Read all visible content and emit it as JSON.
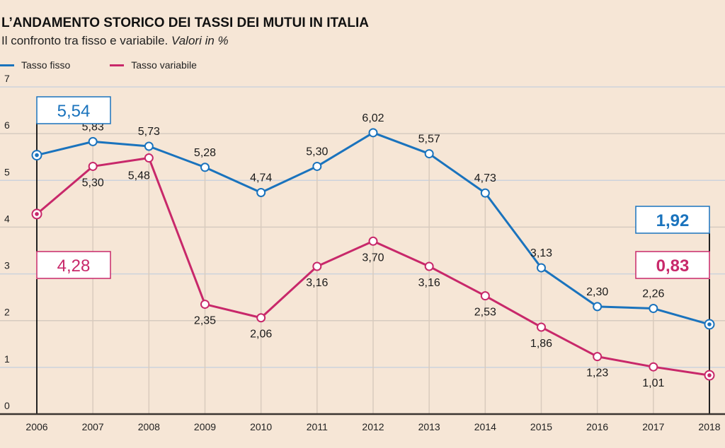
{
  "header": {
    "title": "L’ANDAMENTO STORICO DEI TASSI DEI MUTUI IN ITALIA",
    "subtitle_plain": "Il confronto tra fisso e variabile.",
    "subtitle_italic": "Valori in %"
  },
  "colors": {
    "fisso": "#1a73bd",
    "variabile": "#c8286a",
    "background": "#f6e6d6",
    "text": "#1a1a1a"
  },
  "chart_data": {
    "type": "line",
    "title": "L’ANDAMENTO STORICO DEI TASSI DEI MUTUI IN ITALIA",
    "subtitle": "Il confronto tra fisso e variabile. Valori in %",
    "xlabel": "",
    "ylabel": "",
    "x": [
      "2006",
      "2007",
      "2008",
      "2009",
      "2010",
      "2011",
      "2012",
      "2013",
      "2014",
      "2015",
      "2016",
      "2017",
      "2018"
    ],
    "ylim": [
      0,
      7
    ],
    "yticks": [
      "0",
      "1",
      "2",
      "3",
      "4",
      "5",
      "6",
      "7"
    ],
    "grid": true,
    "legend": "top-left",
    "series": [
      {
        "name": "Tasso fisso",
        "color": "#1a73bd",
        "values": [
          5.54,
          5.83,
          5.73,
          5.28,
          4.74,
          5.3,
          6.02,
          5.57,
          4.73,
          3.13,
          2.3,
          2.26,
          1.92
        ],
        "labels": [
          "5,54",
          "5,83",
          "5,73",
          "5,28",
          "4,74",
          "5,30",
          "6,02",
          "5,57",
          "4,73",
          "3,13",
          "2,30",
          "2,26",
          "1,92"
        ],
        "label_pos": "above"
      },
      {
        "name": "Tasso variabile",
        "color": "#c8286a",
        "values": [
          4.28,
          5.3,
          5.48,
          2.35,
          2.06,
          3.16,
          3.7,
          3.16,
          2.53,
          1.86,
          1.23,
          1.01,
          0.83
        ],
        "labels": [
          "4,28",
          "5,30",
          "5,48",
          "2,35",
          "2,06",
          "3,16",
          "3,70",
          "3,16",
          "2,53",
          "1,86",
          "1,23",
          "1,01",
          "0,83"
        ],
        "label_pos": "below"
      }
    ],
    "highlight_boxes": [
      {
        "series": 0,
        "year": "2006",
        "text": "5,54"
      },
      {
        "series": 1,
        "year": "2006",
        "text": "4,28"
      },
      {
        "series": 0,
        "year": "2018",
        "text": "1,92"
      },
      {
        "series": 1,
        "year": "2018",
        "text": "0,83"
      }
    ]
  }
}
